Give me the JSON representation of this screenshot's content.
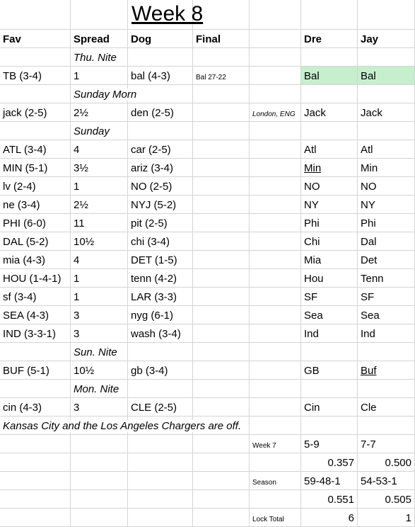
{
  "title": "Week 8",
  "headers": [
    "Fav",
    "Spread",
    "Dog",
    "Final",
    null,
    "Dre",
    "Jay"
  ],
  "rows": [
    [
      null,
      "Thu. Nite",
      null,
      null,
      null,
      null,
      null
    ],
    [
      "TB (3-4)",
      "1",
      "bal (4-3)",
      "Bal 27-22",
      null,
      "Bal",
      "Bal"
    ],
    [
      null,
      "Sunday Morn",
      null,
      null,
      null,
      null,
      null
    ],
    [
      "jack (2-5)",
      "2½",
      "den (2-5)",
      null,
      "London, ENG",
      "Jack",
      "Jack"
    ],
    [
      null,
      "Sunday",
      null,
      null,
      null,
      null,
      null
    ],
    [
      "ATL (3-4)",
      "4",
      "car (2-5)",
      null,
      null,
      "Atl",
      "Atl"
    ],
    [
      "MIN (5-1)",
      "3½",
      "ariz (3-4)",
      null,
      null,
      "Min",
      "Min"
    ],
    [
      "lv (2-4)",
      "1",
      "NO (2-5)",
      null,
      null,
      "NO",
      "NO"
    ],
    [
      "ne (3-4)",
      "2½",
      "NYJ (5-2)",
      null,
      null,
      "NY",
      "NY"
    ],
    [
      "PHI (6-0)",
      "11",
      "pit (2-5)",
      null,
      null,
      "Phi",
      "Phi"
    ],
    [
      "DAL (5-2)",
      "10½",
      "chi (3-4)",
      null,
      null,
      "Chi",
      "Dal"
    ],
    [
      "mia (4-3)",
      "4",
      "DET (1-5)",
      null,
      null,
      "Mia",
      "Det"
    ],
    [
      "HOU (1-4-1)",
      "1",
      "tenn (4-2)",
      null,
      null,
      "Hou",
      "Tenn"
    ],
    [
      "sf (3-4)",
      "1",
      "LAR (3-3)",
      null,
      null,
      "SF",
      "SF"
    ],
    [
      "SEA (4-3)",
      "3",
      "nyg (6-1)",
      null,
      null,
      "Sea",
      "Sea"
    ],
    [
      "IND (3-3-1)",
      "3",
      "wash (3-4)",
      null,
      null,
      "Ind",
      "Ind"
    ],
    [
      null,
      "Sun. Nite",
      null,
      null,
      null,
      null,
      null
    ],
    [
      "BUF (5-1)",
      "10½",
      "gb (3-4)",
      null,
      null,
      "GB",
      "Buf"
    ],
    [
      null,
      "Mon. Nite",
      null,
      null,
      null,
      null,
      null
    ],
    [
      "cin (4-3)",
      "3",
      "CLE (2-5)",
      null,
      null,
      "Cin",
      "Cle"
    ],
    [
      "Kansas City and the Los Angeles Chargers are off.",
      null,
      null,
      null,
      null,
      null,
      null
    ],
    [
      null,
      null,
      null,
      null,
      "Week 7",
      "5-9",
      "7-7"
    ],
    [
      null,
      null,
      null,
      null,
      null,
      "0.357",
      "0.500"
    ],
    [
      null,
      null,
      null,
      null,
      "Season",
      "59-48-1",
      "54-53-1"
    ],
    [
      null,
      null,
      null,
      null,
      null,
      "0.551",
      "0.505"
    ],
    [
      null,
      null,
      null,
      null,
      "Lock Total",
      "6",
      "1"
    ]
  ]
}
